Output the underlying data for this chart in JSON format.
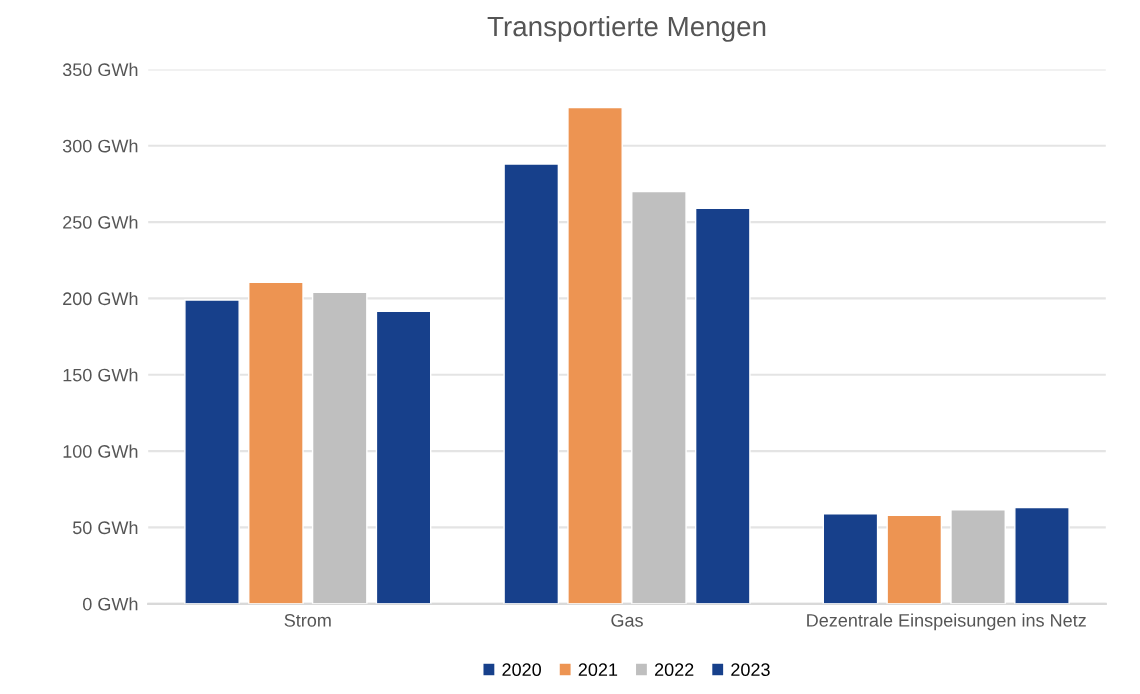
{
  "chart_data": {
    "type": "bar",
    "title": "Transportierte Mengen",
    "categories": [
      "Strom",
      "Gas",
      "Dezentrale Einspeisungen ins Netz"
    ],
    "series": [
      {
        "name": "2020",
        "color": "#17408b",
        "values": [
          199,
          288,
          59
        ]
      },
      {
        "name": "2021",
        "color": "#ed9452",
        "values": [
          210.5,
          325,
          58
        ]
      },
      {
        "name": "2022",
        "color": "#bfbfbf",
        "values": [
          204,
          270,
          61.5
        ]
      },
      {
        "name": "2023",
        "color": "#17408b",
        "values": [
          191.5,
          259,
          63
        ]
      }
    ],
    "ylim": [
      0,
      350
    ],
    "yticks": [
      {
        "value": 0,
        "label": "0 GWh"
      },
      {
        "value": 50,
        "label": "50 GWh"
      },
      {
        "value": 100,
        "label": "100 GWh"
      },
      {
        "value": 150,
        "label": "150 GWh"
      },
      {
        "value": 200,
        "label": "200 GWh"
      },
      {
        "value": 250,
        "label": "250 GWh"
      },
      {
        "value": 300,
        "label": "300 GWh"
      },
      {
        "value": 350,
        "label": "350 GWh"
      }
    ],
    "grid": "y",
    "legend": "bottom"
  }
}
